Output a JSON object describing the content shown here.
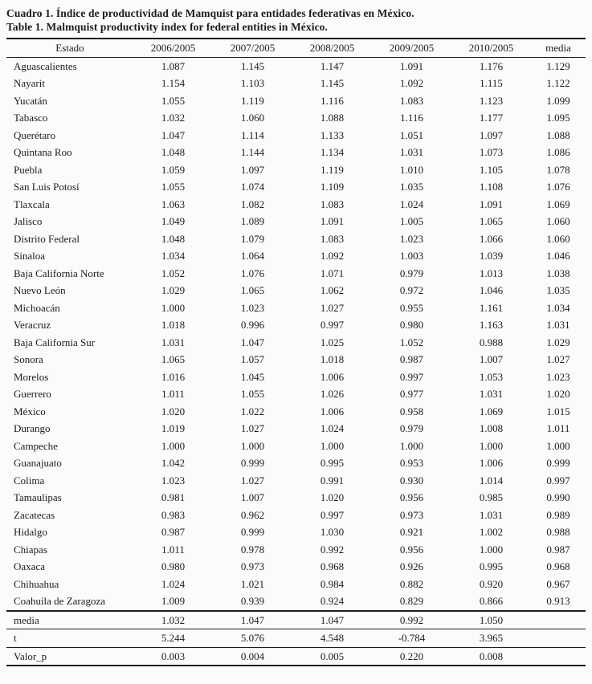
{
  "caption": {
    "spanish": "Cuadro 1. Índice de productividad de Mamquist para entidades federativas en México.",
    "english": "Table 1. Malmquist productivity index for federal entities in México."
  },
  "table": {
    "columns": [
      "Estado",
      "2006/2005",
      "2007/2005",
      "2008/2005",
      "2009/2005",
      "2010/2005",
      "media"
    ],
    "rows": [
      [
        "Aguascalientes",
        "1.087",
        "1.145",
        "1.147",
        "1.091",
        "1.176",
        "1.129"
      ],
      [
        "Nayarit",
        "1.154",
        "1.103",
        "1.145",
        "1.092",
        "1.115",
        "1.122"
      ],
      [
        "Yucatán",
        "1.055",
        "1.119",
        "1.116",
        "1.083",
        "1.123",
        "1.099"
      ],
      [
        "Tabasco",
        "1.032",
        "1.060",
        "1.088",
        "1.116",
        "1.177",
        "1.095"
      ],
      [
        "Querétaro",
        "1.047",
        "1.114",
        "1.133",
        "1.051",
        "1.097",
        "1.088"
      ],
      [
        "Quintana Roo",
        "1.048",
        "1.144",
        "1.134",
        "1.031",
        "1.073",
        "1.086"
      ],
      [
        "Puebla",
        "1.059",
        "1.097",
        "1.119",
        "1.010",
        "1.105",
        "1.078"
      ],
      [
        "San Luis Potosí",
        "1.055",
        "1.074",
        "1.109",
        "1.035",
        "1.108",
        "1.076"
      ],
      [
        "Tlaxcala",
        "1.063",
        "1.082",
        "1.083",
        "1.024",
        "1.091",
        "1.069"
      ],
      [
        "Jalisco",
        "1.049",
        "1.089",
        "1.091",
        "1.005",
        "1.065",
        "1.060"
      ],
      [
        "Distrito Federal",
        "1.048",
        "1.079",
        "1.083",
        "1.023",
        "1.066",
        "1.060"
      ],
      [
        "Sinaloa",
        "1.034",
        "1.064",
        "1.092",
        "1.003",
        "1.039",
        "1.046"
      ],
      [
        "Baja California Norte",
        "1.052",
        "1.076",
        "1.071",
        "0.979",
        "1.013",
        "1.038"
      ],
      [
        "Nuevo León",
        "1.029",
        "1.065",
        "1.062",
        "0.972",
        "1.046",
        "1.035"
      ],
      [
        "Michoacán",
        "1.000",
        "1.023",
        "1.027",
        "0.955",
        "1.161",
        "1.034"
      ],
      [
        "Veracruz",
        "1.018",
        "0.996",
        "0.997",
        "0.980",
        "1.163",
        "1.031"
      ],
      [
        "Baja California Sur",
        "1.031",
        "1.047",
        "1.025",
        "1.052",
        "0.988",
        "1.029"
      ],
      [
        "Sonora",
        "1.065",
        "1.057",
        "1.018",
        "0.987",
        "1.007",
        "1.027"
      ],
      [
        "Morelos",
        "1.016",
        "1.045",
        "1.006",
        "0.997",
        "1.053",
        "1.023"
      ],
      [
        "Guerrero",
        "1.011",
        "1.055",
        "1.026",
        "0.977",
        "1.031",
        "1.020"
      ],
      [
        "México",
        "1.020",
        "1.022",
        "1.006",
        "0.958",
        "1.069",
        "1.015"
      ],
      [
        "Durango",
        "1.019",
        "1.027",
        "1.024",
        "0.979",
        "1.008",
        "1.011"
      ],
      [
        "Campeche",
        "1.000",
        "1.000",
        "1.000",
        "1.000",
        "1.000",
        "1.000"
      ],
      [
        "Guanajuato",
        "1.042",
        "0.999",
        "0.995",
        "0.953",
        "1.006",
        "0.999"
      ],
      [
        "Colima",
        "1.023",
        "1.027",
        "0.991",
        "0.930",
        "1.014",
        "0.997"
      ],
      [
        "Tamaulipas",
        "0.981",
        "1.007",
        "1.020",
        "0.956",
        "0.985",
        "0.990"
      ],
      [
        "Zacatecas",
        "0.983",
        "0.962",
        "0.997",
        "0.973",
        "1.031",
        "0.989"
      ],
      [
        "Hidalgo",
        "0.987",
        "0.999",
        "1.030",
        "0.921",
        "1.002",
        "0.988"
      ],
      [
        "Chiapas",
        "1.011",
        "0.978",
        "0.992",
        "0.956",
        "1.000",
        "0.987"
      ],
      [
        "Oaxaca",
        "0.980",
        "0.973",
        "0.968",
        "0.926",
        "0.995",
        "0.968"
      ],
      [
        "Chihuahua",
        "1.024",
        "1.021",
        "0.984",
        "0.882",
        "0.920",
        "0.967"
      ],
      [
        "Coahuila de Zaragoza",
        "1.009",
        "0.939",
        "0.924",
        "0.829",
        "0.866",
        "0.913"
      ]
    ],
    "summary": [
      [
        "media",
        "1.032",
        "1.047",
        "1.047",
        "0.992",
        "1.050",
        ""
      ],
      [
        "t",
        "5.244",
        "5.076",
        "4.548",
        "-0.784",
        "3.965",
        ""
      ],
      [
        "Valor_p",
        "0.003",
        "0.004",
        "0.005",
        "0.220",
        "0.008",
        ""
      ]
    ]
  }
}
